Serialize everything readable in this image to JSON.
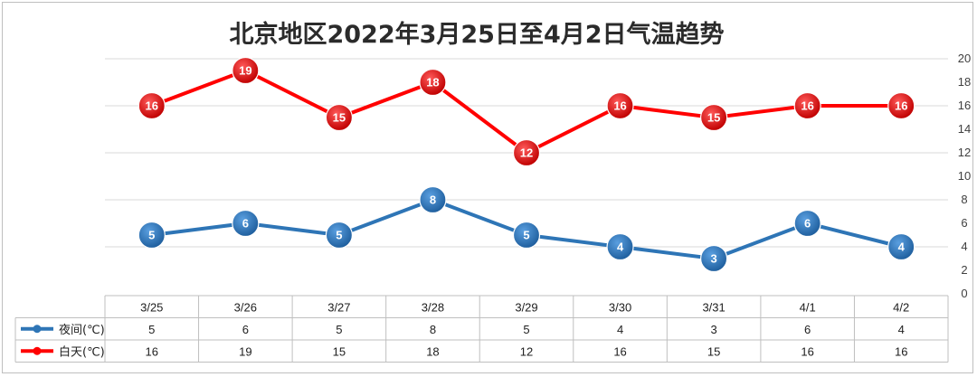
{
  "chart_data": {
    "type": "line",
    "title": "北京地区2022年3月25日至4月2日气温趋势",
    "categories": [
      "3/25",
      "3/26",
      "3/27",
      "3/28",
      "3/29",
      "3/30",
      "3/31",
      "4/1",
      "4/2"
    ],
    "series": [
      {
        "name": "夜间(℃)",
        "color": "#2e75b6",
        "values": [
          5,
          6,
          5,
          8,
          5,
          4,
          3,
          6,
          4
        ]
      },
      {
        "name": "白天(℃)",
        "color": "#ff0000",
        "values": [
          16,
          19,
          15,
          18,
          12,
          16,
          15,
          16,
          16
        ]
      }
    ],
    "ylim": [
      0,
      20
    ],
    "yticks": [
      0,
      2,
      4,
      6,
      8,
      10,
      12,
      14,
      16,
      18,
      20
    ],
    "grid": "horizontal-every-4",
    "data_table": true,
    "xlabel": "",
    "ylabel": ""
  }
}
